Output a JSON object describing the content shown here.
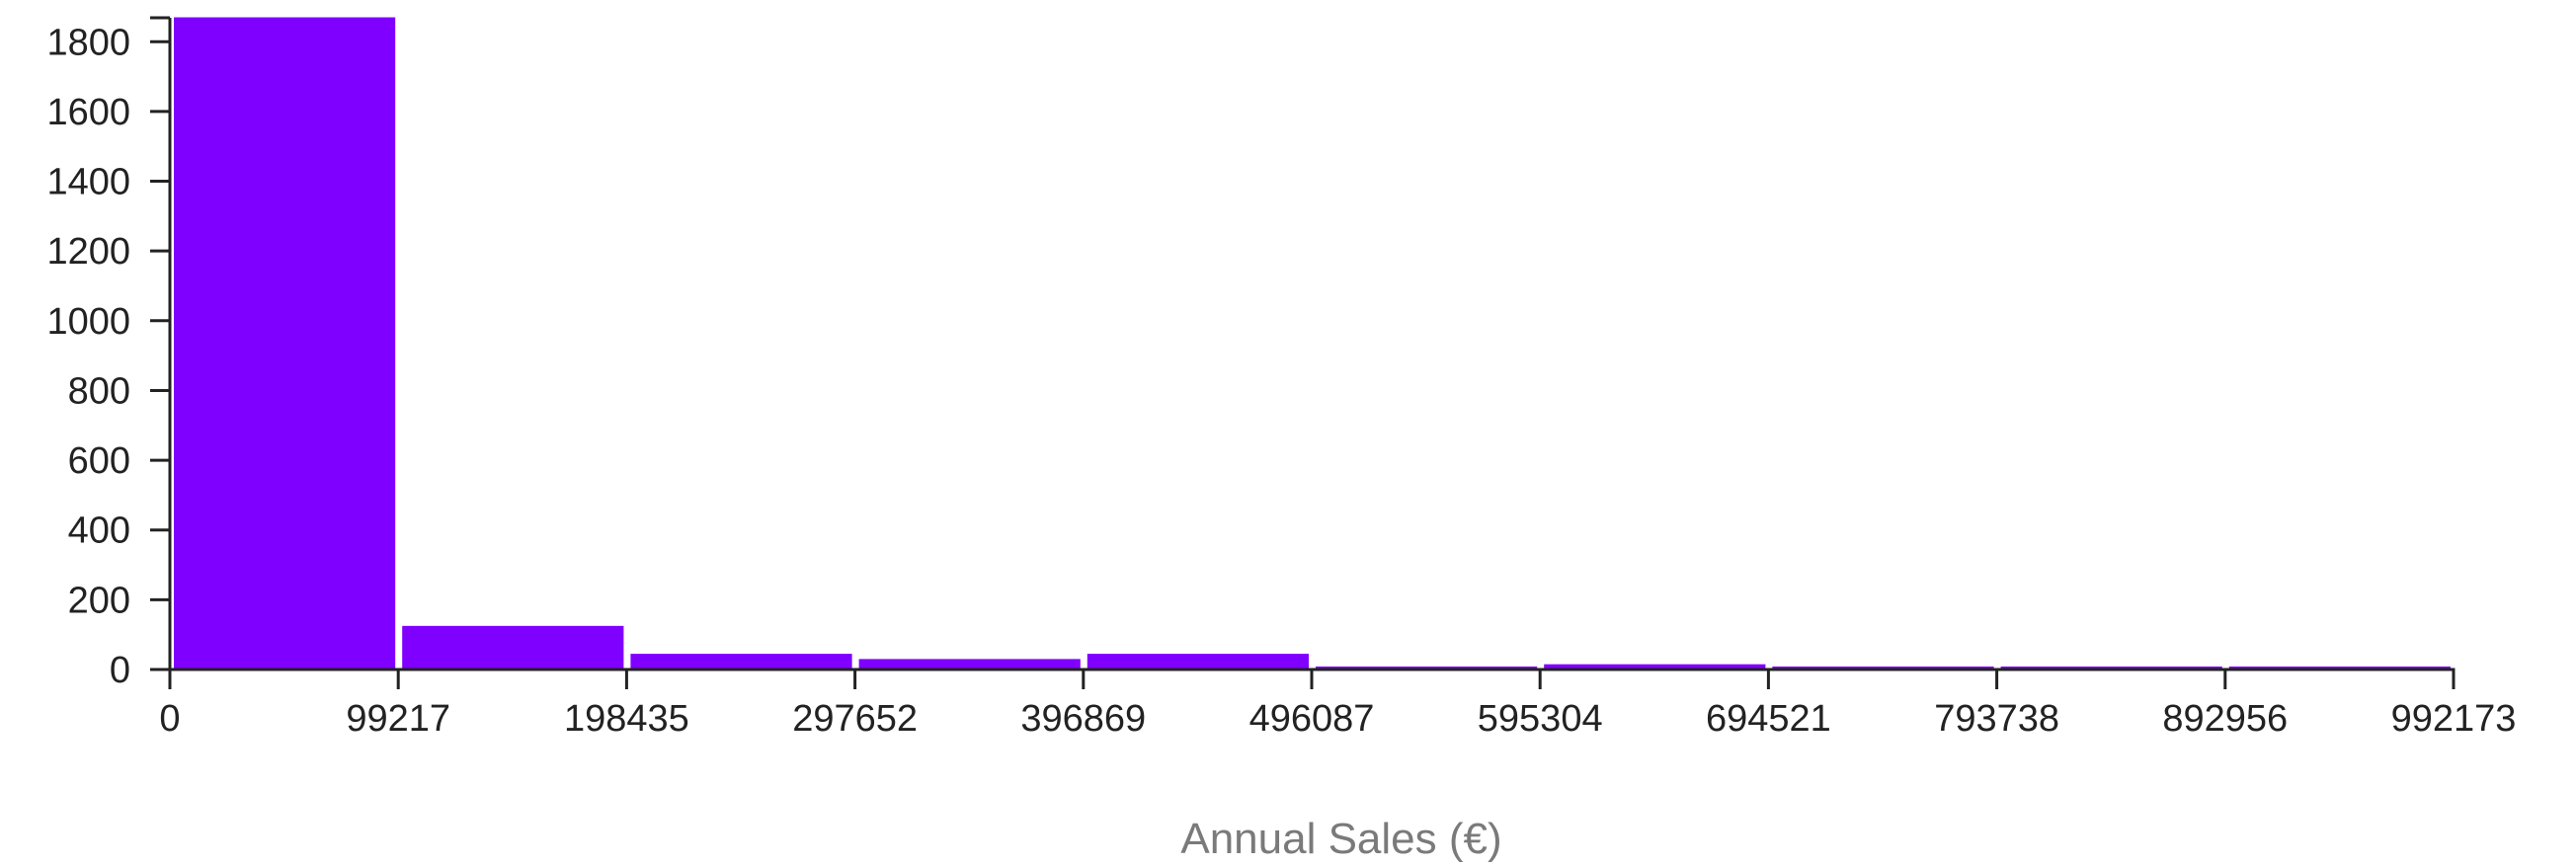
{
  "chart_data": {
    "type": "bar",
    "subtype": "histogram",
    "title": "",
    "xlabel": "Annual Sales (€)",
    "ylabel": "",
    "x_ticks": [
      "0",
      "99217",
      "198435",
      "297652",
      "396869",
      "496087",
      "595304",
      "694521",
      "793738",
      "892956",
      "992173"
    ],
    "y_ticks": [
      "0",
      "200",
      "400",
      "600",
      "800",
      "1000",
      "1200",
      "1400",
      "1600",
      "1800"
    ],
    "bins": [
      {
        "start": 0,
        "end": 99217,
        "count": 1870
      },
      {
        "start": 99217,
        "end": 198435,
        "count": 125
      },
      {
        "start": 198435,
        "end": 297652,
        "count": 45
      },
      {
        "start": 297652,
        "end": 396869,
        "count": 30
      },
      {
        "start": 396869,
        "end": 496087,
        "count": 45
      },
      {
        "start": 496087,
        "end": 595304,
        "count": 5
      },
      {
        "start": 595304,
        "end": 694521,
        "count": 15
      },
      {
        "start": 694521,
        "end": 793738,
        "count": 8
      },
      {
        "start": 793738,
        "end": 892956,
        "count": 3
      },
      {
        "start": 892956,
        "end": 992173,
        "count": 3
      }
    ],
    "xlim": [
      0,
      992173
    ],
    "ylim": [
      0,
      1880
    ],
    "grid": false,
    "bar_color": "#8000ff",
    "axis_color": "#222222",
    "xlabel_color": "#7a7a7a"
  }
}
